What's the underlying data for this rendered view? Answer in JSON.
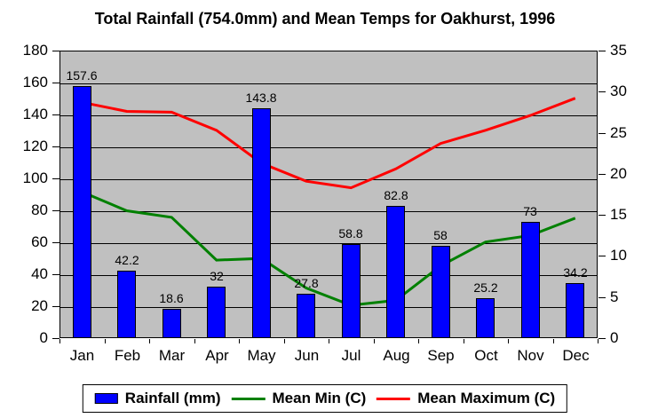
{
  "chart_data": {
    "type": "combo_bar_line",
    "title": "Total Rainfall (754.0mm) and Mean Temps for Oakhurst, 1996",
    "categories": [
      "Jan",
      "Feb",
      "Mar",
      "Apr",
      "May",
      "Jun",
      "Jul",
      "Aug",
      "Sep",
      "Oct",
      "Nov",
      "Dec"
    ],
    "series": [
      {
        "name": "Rainfall (mm)",
        "type": "bar",
        "axis": "left",
        "color": "#0000ff",
        "values": [
          157.6,
          42.2,
          18.6,
          32,
          143.8,
          27.8,
          58.8,
          82.8,
          58,
          25.2,
          73,
          34.2
        ],
        "data_labels_shown": true,
        "total": 754.0
      },
      {
        "name": "Mean Min (C)",
        "type": "line",
        "axis": "right",
        "color": "#008000",
        "values": [
          17.8,
          15.5,
          14.7,
          9.5,
          9.7,
          6.1,
          4.0,
          4.6,
          8.8,
          11.7,
          12.5,
          14.6
        ]
      },
      {
        "name": "Mean Maximum (C)",
        "type": "line",
        "axis": "right",
        "color": "#ff0000",
        "values": [
          28.7,
          27.6,
          27.5,
          25.3,
          21.3,
          19.1,
          18.3,
          20.6,
          23.7,
          25.3,
          27.1,
          29.2
        ]
      }
    ],
    "left_axis": {
      "min": 0,
      "max": 180,
      "step": 20,
      "ticks": [
        0,
        20,
        40,
        60,
        80,
        100,
        120,
        140,
        160,
        180
      ]
    },
    "right_axis": {
      "min": 0,
      "max": 35,
      "step": 5,
      "ticks": [
        0,
        5,
        10,
        15,
        20,
        25,
        30,
        35
      ]
    },
    "grid": true,
    "plot_background": "#c0c0c0",
    "legend_position": "bottom"
  }
}
